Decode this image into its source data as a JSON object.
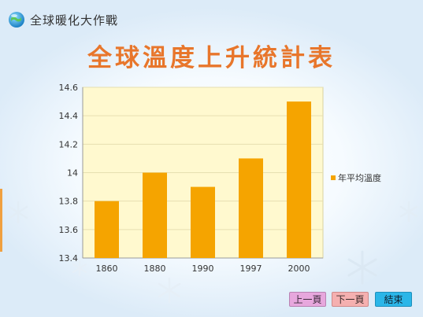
{
  "app": {
    "title": "全球暖化大作戰"
  },
  "slide": {
    "title": "全球溫度上升統計表"
  },
  "chart_data": {
    "type": "bar",
    "categories": [
      "1860",
      "1880",
      "1990",
      "1997",
      "2000"
    ],
    "series": [
      {
        "name": "年平均溫度",
        "values": [
          13.8,
          14.0,
          13.9,
          14.1,
          14.5
        ]
      }
    ],
    "yticks": [
      "13.4",
      "13.6",
      "13.8",
      "14",
      "14.2",
      "14.4",
      "14.6"
    ],
    "ylim": [
      13.4,
      14.6
    ],
    "grid": true,
    "legend_position": "right",
    "bar_color": "#f5a400",
    "plot_background": "#fff9cf"
  },
  "nav": {
    "prev_label": "上一頁",
    "next_label": "下一頁",
    "end_label": "結束"
  },
  "colors": {
    "title": "#e8762b",
    "prev": "#e7a7dd",
    "next": "#f5b0b0",
    "end": "#2bb6e8"
  }
}
